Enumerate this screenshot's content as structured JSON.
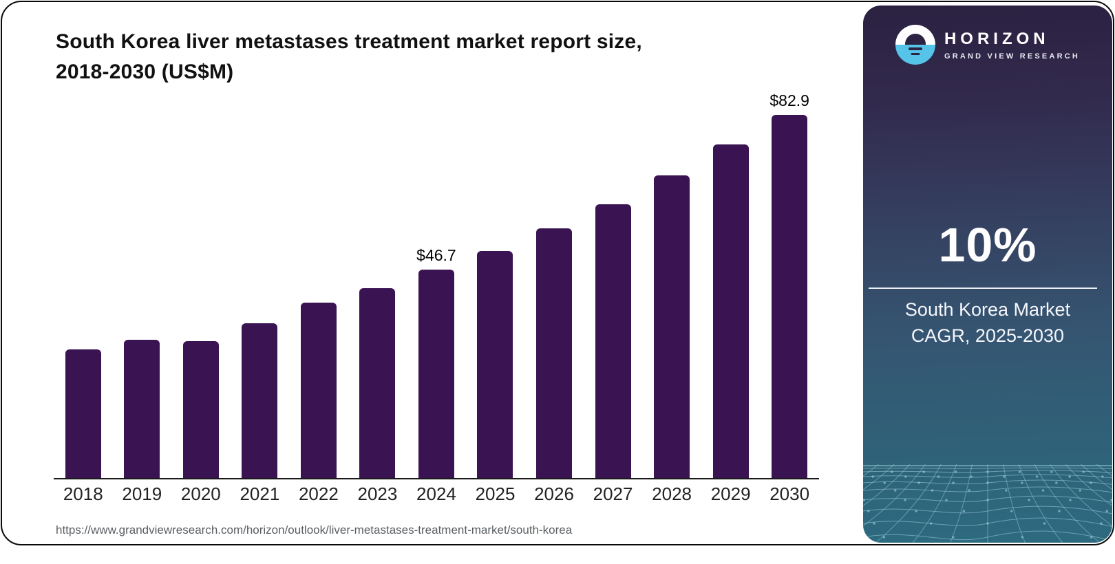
{
  "header": {
    "title_line1": "South Korea liver metastases treatment market report size,",
    "title_line2": "2018-2030 (US$M)"
  },
  "chart_data": {
    "type": "bar",
    "title": "South Korea liver metastases treatment market report size, 2018-2030 (US$M)",
    "categories": [
      "2018",
      "2019",
      "2020",
      "2021",
      "2022",
      "2023",
      "2024",
      "2025",
      "2026",
      "2027",
      "2028",
      "2029",
      "2030"
    ],
    "values": [
      28.8,
      31.0,
      30.7,
      34.6,
      39.3,
      42.5,
      46.7,
      50.8,
      56.0,
      61.4,
      67.8,
      74.8,
      82.9
    ],
    "data_labels": [
      "",
      "",
      "",
      "",
      "",
      "",
      "$46.7",
      "",
      "",
      "",
      "",
      "",
      "$82.9"
    ],
    "unit": "US$M",
    "xlabel": "",
    "ylabel": "",
    "ylim": [
      0,
      90
    ],
    "grid": "off",
    "legend": "none",
    "bar_color": "#3a1353"
  },
  "footer": {
    "source_url": "https://www.grandviewresearch.com/horizon/outlook/liver-metastases-treatment-market/south-korea"
  },
  "sidebar": {
    "brand": "HORIZON",
    "brand_sub": "GRAND VIEW RESEARCH",
    "logo_icon": "horizon-sunset-icon",
    "stat_value": "10%",
    "caption_line1": "South Korea Market",
    "caption_line2": "CAGR, 2025-2030",
    "colors": {
      "panel_top": "#2b2141",
      "panel_mid": "#355672",
      "panel_bottom": "#2d6a80",
      "logo_blue": "#56c3e9",
      "mesh_line": "#9ccfdd"
    }
  }
}
